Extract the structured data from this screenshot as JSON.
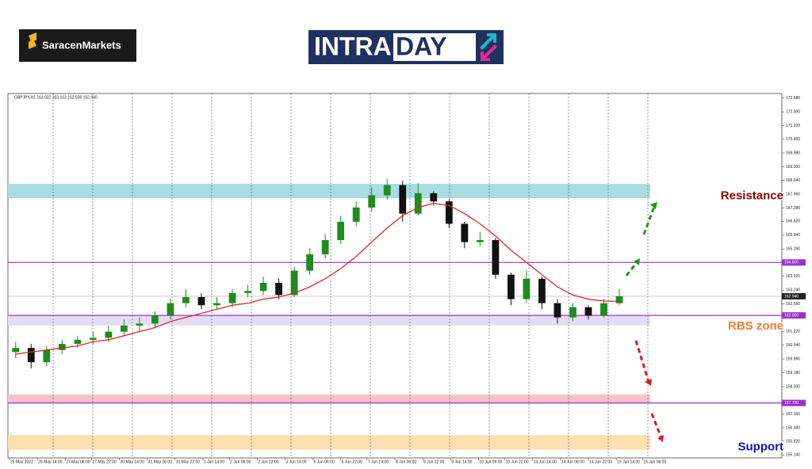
{
  "brand": "SaracenMarkets",
  "banner": {
    "left": "INTRA",
    "right": "DAY"
  },
  "chart_data": {
    "type": "candlestick",
    "header": "GBPJPY,H1  163.022 163.163 162.936 162.940",
    "xlim": [
      -0.5,
      49.5
    ],
    "ylim": [
      155.0,
      172.9
    ],
    "up_color": "#1e8c1e",
    "down_color": "#111111",
    "open": [
      160.2,
      160.4,
      159.7,
      160.3,
      160.6,
      160.8,
      160.9,
      161.2,
      161.5,
      161.6,
      162.0,
      162.6,
      162.9,
      162.5,
      162.6,
      163.1,
      163.2,
      163.6,
      163.0,
      164.2,
      165.0,
      165.7,
      166.6,
      167.3,
      167.9,
      168.4,
      167.0,
      168.0,
      167.6,
      166.5,
      165.6,
      165.7,
      164.0,
      162.8,
      163.8,
      162.6,
      161.9,
      162.4,
      162.0,
      162.6
    ],
    "high": [
      160.7,
      160.6,
      160.5,
      160.8,
      161.0,
      161.2,
      161.5,
      161.8,
      161.9,
      162.2,
      162.8,
      163.3,
      163.1,
      162.9,
      163.3,
      163.5,
      163.9,
      163.8,
      164.4,
      165.3,
      166.0,
      166.9,
      167.6,
      168.3,
      168.7,
      168.6,
      168.5,
      168.1,
      167.7,
      166.6,
      166.1,
      165.8,
      164.1,
      164.2,
      163.9,
      162.8,
      162.6,
      162.5,
      162.8,
      163.3
    ],
    "low": [
      159.9,
      159.4,
      159.5,
      160.1,
      160.4,
      160.6,
      160.7,
      161.0,
      161.2,
      161.4,
      161.8,
      162.4,
      162.3,
      162.3,
      162.4,
      162.9,
      163.0,
      162.8,
      162.9,
      164.0,
      164.8,
      165.5,
      166.4,
      167.1,
      167.7,
      166.6,
      166.9,
      167.4,
      166.3,
      165.3,
      165.4,
      163.8,
      162.5,
      162.6,
      162.3,
      161.6,
      161.7,
      161.8,
      161.9,
      162.5
    ],
    "close": [
      160.4,
      159.7,
      160.3,
      160.6,
      160.8,
      160.9,
      161.2,
      161.5,
      161.6,
      162.0,
      162.6,
      162.9,
      162.5,
      162.6,
      163.1,
      163.2,
      163.6,
      163.0,
      164.2,
      165.0,
      165.7,
      166.6,
      167.3,
      167.9,
      168.4,
      167.0,
      168.0,
      167.6,
      166.5,
      165.6,
      165.7,
      164.0,
      162.8,
      163.8,
      162.6,
      161.9,
      162.4,
      162.0,
      162.6,
      162.94
    ],
    "ma": {
      "color": "#e02828",
      "values": [
        160.1,
        160.2,
        160.3,
        160.4,
        160.5,
        160.7,
        160.8,
        161.0,
        161.2,
        161.4,
        161.7,
        161.9,
        162.1,
        162.3,
        162.5,
        162.6,
        162.8,
        162.9,
        163.1,
        163.4,
        163.8,
        164.3,
        164.9,
        165.6,
        166.3,
        166.9,
        167.3,
        167.5,
        167.4,
        167.0,
        166.5,
        165.9,
        165.2,
        164.6,
        164.0,
        163.4,
        163.0,
        162.8,
        162.7,
        162.7
      ]
    },
    "yticks": [
      {
        "value": 172.68,
        "label": "172.680"
      },
      {
        "value": 172.0,
        "label": "172.000"
      },
      {
        "value": 171.32,
        "label": "171.320"
      },
      {
        "value": 170.66,
        "label": "170.660"
      },
      {
        "value": 169.98,
        "label": "169.980"
      },
      {
        "value": 169.3,
        "label": "169.300"
      },
      {
        "value": 168.64,
        "label": "168.640"
      },
      {
        "value": 167.96,
        "label": "167.960"
      },
      {
        "value": 167.28,
        "label": "167.280"
      },
      {
        "value": 166.62,
        "label": "166.620"
      },
      {
        "value": 165.94,
        "label": "165.940"
      },
      {
        "value": 165.26,
        "label": "165.260"
      },
      {
        "value": 163.92,
        "label": "163.920"
      },
      {
        "value": 163.24,
        "label": "163.240"
      },
      {
        "value": 162.56,
        "label": "162.560"
      },
      {
        "value": 161.22,
        "label": "161.220"
      },
      {
        "value": 160.54,
        "label": "160.540"
      },
      {
        "value": 159.86,
        "label": "159.860"
      },
      {
        "value": 159.18,
        "label": "159.180"
      },
      {
        "value": 158.5,
        "label": "158.500"
      },
      {
        "value": 157.16,
        "label": "157.160"
      },
      {
        "value": 156.48,
        "label": "156.480"
      },
      {
        "value": 155.82,
        "label": "155.820"
      },
      {
        "value": 155.14,
        "label": "155.140"
      }
    ],
    "xticks": [
      {
        "value": -0.4,
        "label": "25 May 2022"
      },
      {
        "value": 1.4,
        "label": "26 May 14:00"
      },
      {
        "value": 3.2,
        "label": "27 May 06:00"
      },
      {
        "value": 4.9,
        "label": "27 May 22:00"
      },
      {
        "value": 6.7,
        "label": "30 May 14:00"
      },
      {
        "value": 8.5,
        "label": "31 May 06:00"
      },
      {
        "value": 10.3,
        "label": "31 May 22:00"
      },
      {
        "value": 12.1,
        "label": "1 Jun 14:00"
      },
      {
        "value": 13.8,
        "label": "2 Jun 06:00"
      },
      {
        "value": 15.6,
        "label": "2 Jun 22:00"
      },
      {
        "value": 17.4,
        "label": "3 Jun 14:00"
      },
      {
        "value": 19.2,
        "label": "6 Jun 06:00"
      },
      {
        "value": 21.0,
        "label": "6 Jun 22:00"
      },
      {
        "value": 22.7,
        "label": "7 Jun 14:00"
      },
      {
        "value": 24.5,
        "label": "8 Jun 06:00"
      },
      {
        "value": 26.3,
        "label": "8 Jun 22:00"
      },
      {
        "value": 28.1,
        "label": "9 Jun 14:00"
      },
      {
        "value": 29.9,
        "label": "10 Jun 06:00"
      },
      {
        "value": 31.6,
        "label": "10 Jun 22:00"
      },
      {
        "value": 33.4,
        "label": "13 Jun 14:00"
      },
      {
        "value": 35.2,
        "label": "14 Jun 06:00"
      },
      {
        "value": 37.0,
        "label": "14 Jun 22:00"
      },
      {
        "value": 38.8,
        "label": "15 Jun 14:00"
      },
      {
        "value": 40.5,
        "label": "16 Jun 06:00"
      }
    ],
    "zones": [
      {
        "ylim": [
          167.76,
          168.46
        ],
        "color": "#a9dce3"
      },
      {
        "ylim": [
          161.51,
          161.98
        ],
        "color": "#e4dcf5"
      },
      {
        "ylim": [
          157.72,
          158.11
        ],
        "color": "#f7c0cb"
      },
      {
        "ylim": [
          155.41,
          156.12
        ],
        "color": "#fde0b0"
      }
    ],
    "levels": [
      {
        "value": 164.6,
        "label": "164.600",
        "color": "#9b30c8"
      },
      {
        "value": 162.0,
        "label": "162.000",
        "color": "#9b30c8"
      },
      {
        "value": 157.7,
        "label": "157.700",
        "color": "#9b30c8"
      }
    ],
    "last": {
      "value": 162.94,
      "label": "162.940"
    },
    "annotations": [
      {
        "text": "Resistance",
        "color": "#8b0000",
        "y": 167.86
      },
      {
        "text": "RBS zone",
        "color": "#f07a30",
        "y": 161.45
      },
      {
        "text": "Support",
        "color": "#1010d0",
        "y": 155.52
      }
    ]
  }
}
